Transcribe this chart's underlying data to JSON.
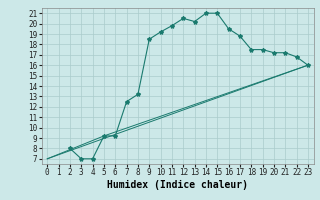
{
  "xlabel": "Humidex (Indice chaleur)",
  "ylabel": "",
  "xlim": [
    -0.5,
    23.5
  ],
  "ylim": [
    6.5,
    21.5
  ],
  "yticks": [
    7,
    8,
    9,
    10,
    11,
    12,
    13,
    14,
    15,
    16,
    17,
    18,
    19,
    20,
    21
  ],
  "xticks": [
    0,
    1,
    2,
    3,
    4,
    5,
    6,
    7,
    8,
    9,
    10,
    11,
    12,
    13,
    14,
    15,
    16,
    17,
    18,
    19,
    20,
    21,
    22,
    23
  ],
  "line_color": "#1a7a6e",
  "bg_color": "#cce8e8",
  "grid_color": "#aacccc",
  "line1_x": [
    2,
    3,
    4,
    5,
    6,
    7,
    8,
    9,
    10,
    11,
    12,
    13,
    14,
    15,
    16,
    17,
    18,
    19,
    20,
    21,
    22,
    23
  ],
  "line1_y": [
    8,
    7,
    7,
    9.2,
    9.2,
    12.5,
    13.2,
    18.5,
    19.2,
    19.8,
    20.5,
    20.2,
    21.0,
    21.0,
    19.5,
    18.8,
    17.5,
    17.5,
    17.2,
    17.2,
    16.8,
    16.0
  ],
  "line2_x": [
    0,
    5,
    23
  ],
  "line2_y": [
    7,
    9.2,
    16.0
  ],
  "line3_x": [
    0,
    23
  ],
  "line3_y": [
    7,
    16.0
  ],
  "font_family": "monospace",
  "tick_fontsize": 5.5,
  "xlabel_fontsize": 7,
  "title_fontsize": 7
}
